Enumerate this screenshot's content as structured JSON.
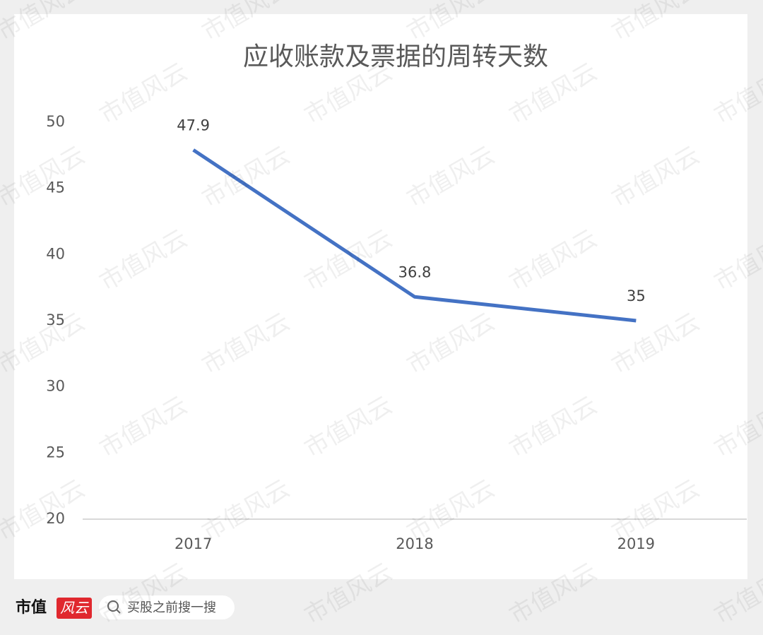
{
  "chart_data": {
    "type": "line",
    "title": "应收账款及票据的周转天数",
    "categories": [
      "2017",
      "2018",
      "2019"
    ],
    "values": [
      47.9,
      36.8,
      35
    ],
    "color": "#4472c4",
    "ylim": [
      20,
      50
    ],
    "yticks": [
      20,
      25,
      30,
      35,
      40,
      45,
      50
    ],
    "grid": false
  },
  "footer": {
    "logo": "市值",
    "logo_mark": "风云",
    "search": "买股之前搜一搜"
  },
  "watermark": "市值风云"
}
